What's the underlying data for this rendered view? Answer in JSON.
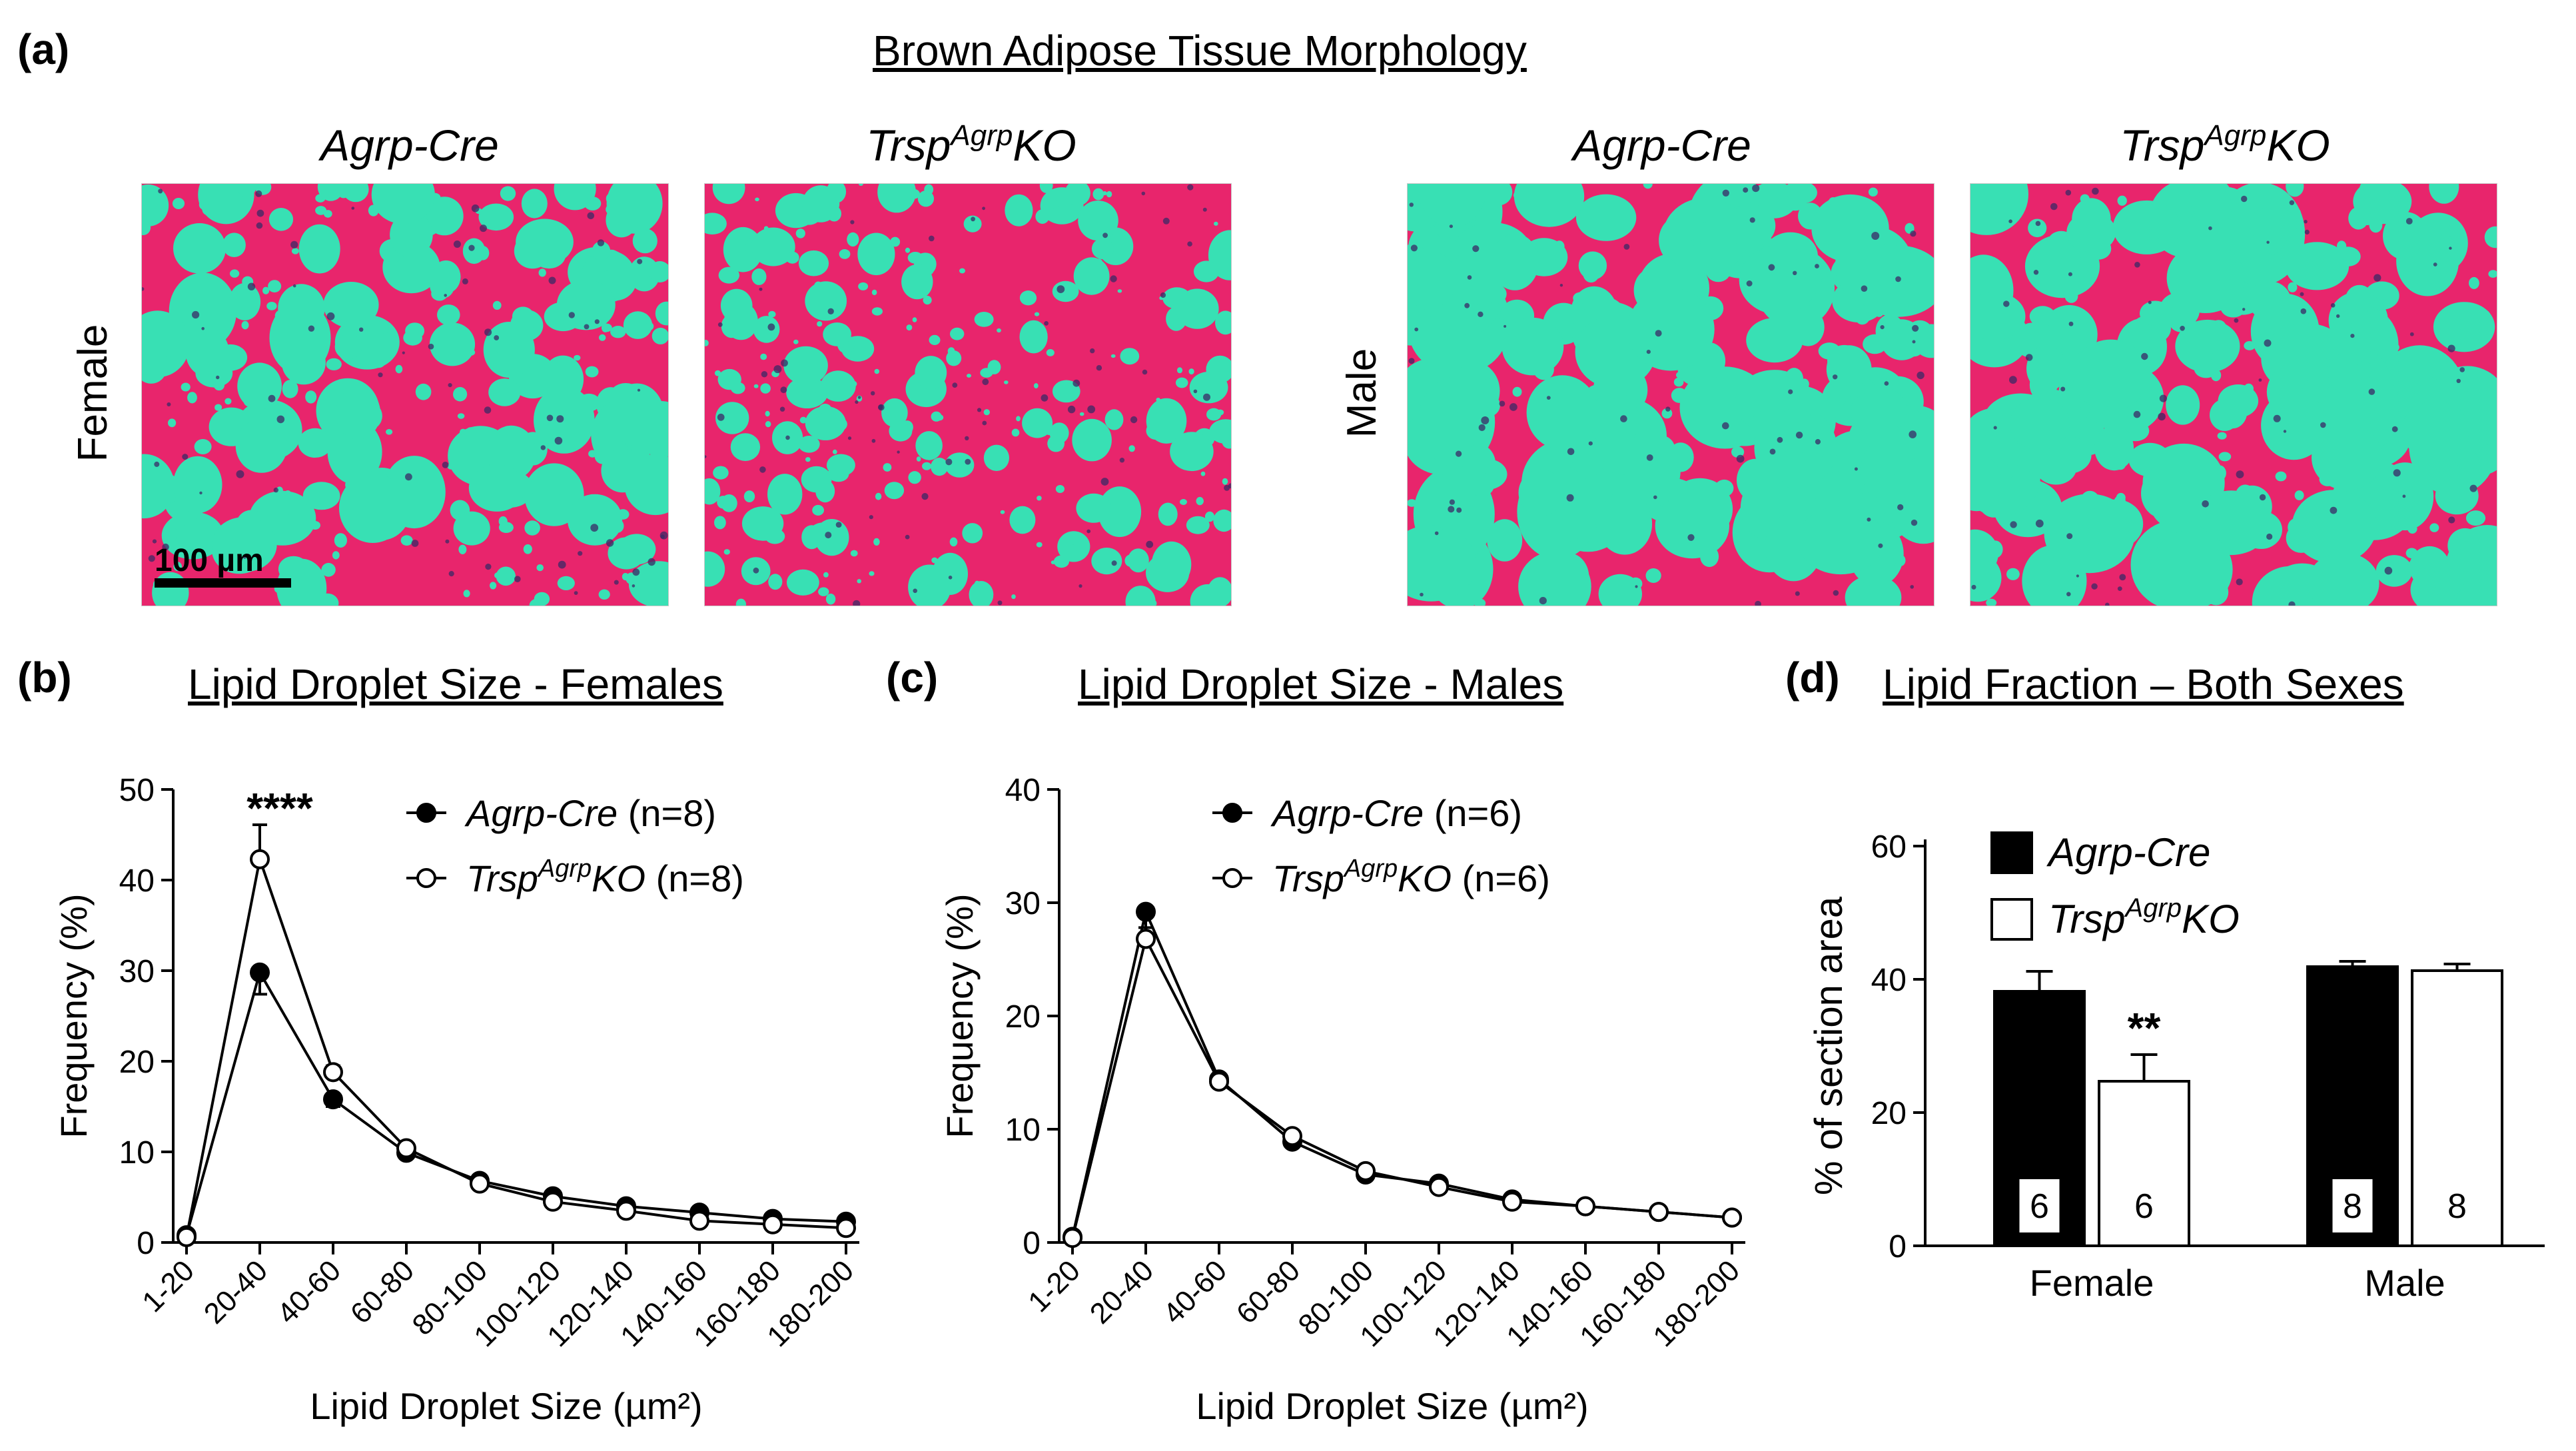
{
  "figure": {
    "panel_a": {
      "label": "(a)",
      "title": "Brown Adipose Tissue Morphology",
      "headers": [
        {
          "base": "Agrp-Cre",
          "sup": "",
          "tail": ""
        },
        {
          "base": "Trsp",
          "sup": "Agrp",
          "tail": "KO"
        },
        {
          "base": "Agrp-Cre",
          "sup": "",
          "tail": ""
        },
        {
          "base": "Trsp",
          "sup": "Agrp",
          "tail": "KO"
        }
      ],
      "row_labels": {
        "left": "Female",
        "right": "Male"
      },
      "scale_bar": "100 µm",
      "colors": {
        "tissue": "#e8256c",
        "lipid": "#38e0b4",
        "nuclei": "#3a2a66"
      }
    },
    "panel_b": {
      "label": "(b)",
      "title": "Lipid Droplet Size - Females",
      "annotation": "****",
      "chart_data": {
        "type": "line",
        "categories": [
          "1-20",
          "20-40",
          "40-60",
          "60-80",
          "80-100",
          "100-120",
          "120-140",
          "140-160",
          "160-180",
          "180-200"
        ],
        "series": [
          {
            "name": "Agrp-Cre",
            "n_label": "(n=8)",
            "marker": "filled",
            "values": [
              0.8,
              29.8,
              15.8,
              9.9,
              6.8,
              5.1,
              4.0,
              3.3,
              2.6,
              2.3
            ],
            "errors": [
              0.3,
              2.4,
              0.8,
              0.5,
              0.4,
              0.3,
              0.3,
              0.3,
              0.2,
              0.2
            ]
          },
          {
            "name": "TrspAgrpKO",
            "n_label": "(n=8)",
            "marker": "open",
            "values": [
              0.6,
              42.3,
              18.8,
              10.4,
              6.5,
              4.5,
              3.5,
              2.4,
              2.0,
              1.6
            ],
            "errors": [
              0.2,
              3.8,
              0.7,
              0.5,
              0.4,
              0.3,
              0.3,
              0.2,
              0.2,
              0.2
            ]
          }
        ],
        "ylabel": "Frequency (%)",
        "xlabel": "Lipid Droplet Size (µm²)",
        "ylim": [
          0,
          50
        ],
        "yticks": [
          0,
          10,
          20,
          30,
          40,
          50
        ]
      }
    },
    "panel_c": {
      "label": "(c)",
      "title": "Lipid Droplet Size - Males",
      "chart_data": {
        "type": "line",
        "categories": [
          "1-20",
          "20-40",
          "40-60",
          "60-80",
          "80-100",
          "100-120",
          "120-140",
          "140-160",
          "160-180",
          "180-200"
        ],
        "series": [
          {
            "name": "Agrp-Cre",
            "n_label": "(n=6)",
            "marker": "filled",
            "values": [
              0.5,
              29.2,
              14.4,
              8.9,
              6.0,
              5.2,
              3.8,
              3.2,
              2.7,
              2.2
            ],
            "errors": [
              0.2,
              2.2,
              0.6,
              0.4,
              0.3,
              0.3,
              0.2,
              0.2,
              0.2,
              0.1
            ]
          },
          {
            "name": "TrspAgrpKO",
            "n_label": "(n=6)",
            "marker": "open",
            "values": [
              0.4,
              26.8,
              14.2,
              9.4,
              6.3,
              4.9,
              3.6,
              3.2,
              2.7,
              2.2
            ],
            "errors": [
              0.2,
              1.0,
              0.5,
              0.4,
              0.3,
              0.3,
              0.2,
              0.2,
              0.2,
              0.1
            ]
          }
        ],
        "ylabel": "Frequency (%)",
        "xlabel": "Lipid Droplet Size (µm²)",
        "ylim": [
          0,
          40
        ],
        "yticks": [
          0,
          10,
          20,
          30,
          40
        ]
      }
    },
    "panel_d": {
      "label": "(d)",
      "title": "Lipid Fraction – Both Sexes",
      "annotation": "**",
      "chart_data": {
        "type": "bar",
        "categories": [
          "Female",
          "Male"
        ],
        "series": [
          {
            "name": "Agrp-Cre",
            "fill": "#000000",
            "values": [
              38.2,
              41.9
            ],
            "errors": [
              3.0,
              0.8
            ],
            "n": [
              "6",
              "8"
            ]
          },
          {
            "name": "TrspAgrpKO",
            "fill": "#ffffff",
            "values": [
              24.7,
              41.3
            ],
            "errors": [
              4.0,
              1.0
            ],
            "n": [
              "6",
              "8"
            ]
          }
        ],
        "ylabel": "% of section area",
        "ylim": [
          0,
          60
        ],
        "yticks": [
          0,
          20,
          40,
          60
        ]
      }
    }
  }
}
